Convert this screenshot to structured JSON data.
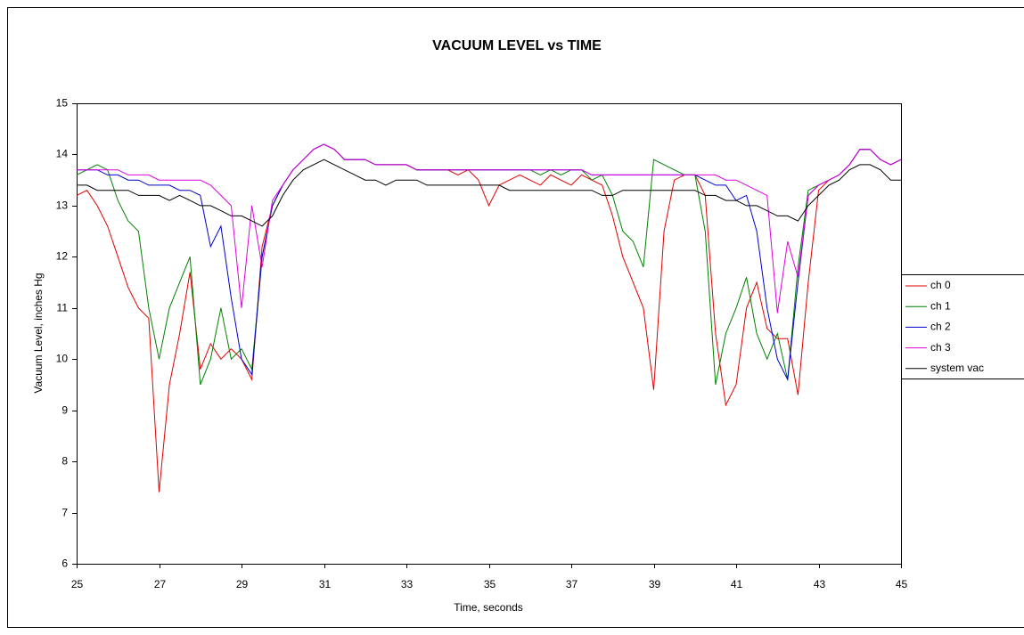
{
  "chart_data": {
    "type": "line",
    "title": "VACUUM LEVEL vs TIME",
    "x_label": "Time, seconds",
    "y_label": "Vacuum Level, inches Hg",
    "xlim": [
      25,
      45
    ],
    "xticks": [
      25,
      27,
      29,
      31,
      33,
      35,
      37,
      39,
      41,
      43,
      45
    ],
    "ylim": [
      6,
      15
    ],
    "yticks": [
      6,
      7,
      8,
      9,
      10,
      11,
      12,
      13,
      14,
      15
    ],
    "grid": false,
    "legend": "right",
    "x": [
      25,
      25.25,
      25.5,
      25.75,
      26,
      26.25,
      26.5,
      26.75,
      27,
      27.25,
      27.5,
      27.75,
      28,
      28.25,
      28.5,
      28.75,
      29,
      29.25,
      29.5,
      29.75,
      30,
      30.25,
      30.5,
      30.75,
      31,
      31.25,
      31.5,
      31.75,
      32,
      32.25,
      32.5,
      32.75,
      33,
      33.25,
      33.5,
      33.75,
      34,
      34.25,
      34.5,
      34.75,
      35,
      35.25,
      35.5,
      35.75,
      36,
      36.25,
      36.5,
      36.75,
      37,
      37.25,
      37.5,
      37.75,
      38,
      38.25,
      38.5,
      38.75,
      39,
      39.25,
      39.5,
      39.75,
      40,
      40.25,
      40.5,
      40.75,
      41,
      41.25,
      41.5,
      41.75,
      42,
      42.25,
      42.5,
      42.75,
      43,
      43.25,
      43.5,
      43.75,
      44,
      44.25,
      44.5,
      44.75,
      45
    ],
    "series": [
      {
        "name": "ch 0",
        "color": "#e00000",
        "values": [
          13.2,
          13.3,
          13.0,
          12.6,
          12.0,
          11.4,
          11.0,
          10.8,
          7.4,
          9.5,
          10.5,
          11.7,
          9.8,
          10.3,
          10.0,
          10.2,
          10.0,
          9.6,
          12.2,
          13.0,
          13.4,
          13.7,
          13.9,
          14.1,
          14.2,
          14.1,
          13.9,
          13.9,
          13.9,
          13.8,
          13.8,
          13.8,
          13.8,
          13.7,
          13.7,
          13.7,
          13.7,
          13.6,
          13.7,
          13.5,
          13.0,
          13.4,
          13.5,
          13.6,
          13.5,
          13.4,
          13.6,
          13.5,
          13.4,
          13.6,
          13.5,
          13.4,
          12.8,
          12.0,
          11.5,
          11.0,
          9.4,
          12.5,
          13.5,
          13.6,
          13.6,
          13.2,
          10.5,
          9.1,
          9.5,
          11.0,
          11.5,
          10.6,
          10.4,
          10.4,
          9.3,
          11.5,
          13.3,
          13.5,
          13.6,
          13.8,
          14.1,
          14.1,
          13.9,
          13.8,
          13.9
        ]
      },
      {
        "name": "ch 1",
        "color": "#008000",
        "values": [
          13.6,
          13.7,
          13.8,
          13.7,
          13.1,
          12.7,
          12.5,
          11.0,
          10.0,
          11.0,
          11.5,
          12.0,
          9.5,
          10.0,
          11.0,
          10.0,
          10.2,
          9.8,
          12.0,
          13.0,
          13.4,
          13.7,
          13.9,
          14.1,
          14.2,
          14.1,
          13.9,
          13.9,
          13.9,
          13.8,
          13.8,
          13.8,
          13.8,
          13.7,
          13.7,
          13.7,
          13.7,
          13.7,
          13.7,
          13.7,
          13.7,
          13.7,
          13.7,
          13.7,
          13.7,
          13.6,
          13.7,
          13.6,
          13.7,
          13.7,
          13.5,
          13.6,
          13.2,
          12.5,
          12.3,
          11.8,
          13.9,
          13.8,
          13.7,
          13.6,
          13.6,
          12.5,
          9.5,
          10.5,
          11.0,
          11.6,
          10.5,
          10.0,
          10.5,
          9.6,
          11.8,
          13.3,
          13.4,
          13.5,
          13.6,
          13.8,
          14.1,
          14.1,
          13.9,
          13.8,
          13.9
        ]
      },
      {
        "name": "ch 2",
        "color": "#0000d0",
        "values": [
          13.7,
          13.7,
          13.7,
          13.6,
          13.6,
          13.5,
          13.5,
          13.4,
          13.4,
          13.4,
          13.3,
          13.3,
          13.2,
          12.2,
          12.6,
          11.2,
          10.0,
          9.7,
          12.0,
          13.0,
          13.4,
          13.7,
          13.9,
          14.1,
          14.2,
          14.1,
          13.9,
          13.9,
          13.9,
          13.8,
          13.8,
          13.8,
          13.8,
          13.7,
          13.7,
          13.7,
          13.7,
          13.7,
          13.7,
          13.7,
          13.7,
          13.7,
          13.7,
          13.7,
          13.7,
          13.7,
          13.7,
          13.7,
          13.7,
          13.7,
          13.6,
          13.6,
          13.6,
          13.6,
          13.6,
          13.6,
          13.6,
          13.6,
          13.6,
          13.6,
          13.6,
          13.5,
          13.4,
          13.4,
          13.1,
          13.2,
          12.5,
          11.0,
          10.0,
          9.6,
          11.5,
          13.2,
          13.4,
          13.5,
          13.6,
          13.8,
          14.1,
          14.1,
          13.9,
          13.8,
          13.9
        ]
      },
      {
        "name": "ch 3",
        "color": "#e000e0",
        "values": [
          13.7,
          13.7,
          13.7,
          13.7,
          13.7,
          13.6,
          13.6,
          13.6,
          13.5,
          13.5,
          13.5,
          13.5,
          13.5,
          13.4,
          13.2,
          13.0,
          11.0,
          13.0,
          11.8,
          13.1,
          13.4,
          13.7,
          13.9,
          14.1,
          14.2,
          14.1,
          13.9,
          13.9,
          13.9,
          13.8,
          13.8,
          13.8,
          13.8,
          13.7,
          13.7,
          13.7,
          13.7,
          13.7,
          13.7,
          13.7,
          13.7,
          13.7,
          13.7,
          13.7,
          13.7,
          13.7,
          13.7,
          13.7,
          13.7,
          13.7,
          13.6,
          13.6,
          13.6,
          13.6,
          13.6,
          13.6,
          13.6,
          13.6,
          13.6,
          13.6,
          13.6,
          13.6,
          13.6,
          13.5,
          13.5,
          13.4,
          13.3,
          13.2,
          10.9,
          12.3,
          11.6,
          13.2,
          13.4,
          13.5,
          13.6,
          13.8,
          14.1,
          14.1,
          13.9,
          13.8,
          13.9
        ]
      },
      {
        "name": "system vac",
        "color": "#000000",
        "values": [
          13.4,
          13.4,
          13.3,
          13.3,
          13.3,
          13.3,
          13.2,
          13.2,
          13.2,
          13.1,
          13.2,
          13.1,
          13.0,
          13.0,
          12.9,
          12.8,
          12.8,
          12.7,
          12.6,
          12.8,
          13.2,
          13.5,
          13.7,
          13.8,
          13.9,
          13.8,
          13.7,
          13.6,
          13.5,
          13.5,
          13.4,
          13.5,
          13.5,
          13.5,
          13.4,
          13.4,
          13.4,
          13.4,
          13.4,
          13.4,
          13.4,
          13.4,
          13.3,
          13.3,
          13.3,
          13.3,
          13.3,
          13.3,
          13.3,
          13.3,
          13.3,
          13.2,
          13.2,
          13.3,
          13.3,
          13.3,
          13.3,
          13.3,
          13.3,
          13.3,
          13.3,
          13.2,
          13.2,
          13.1,
          13.1,
          13.0,
          13.0,
          12.9,
          12.8,
          12.8,
          12.7,
          13.0,
          13.2,
          13.4,
          13.5,
          13.7,
          13.8,
          13.8,
          13.7,
          13.5,
          13.5
        ]
      }
    ]
  }
}
